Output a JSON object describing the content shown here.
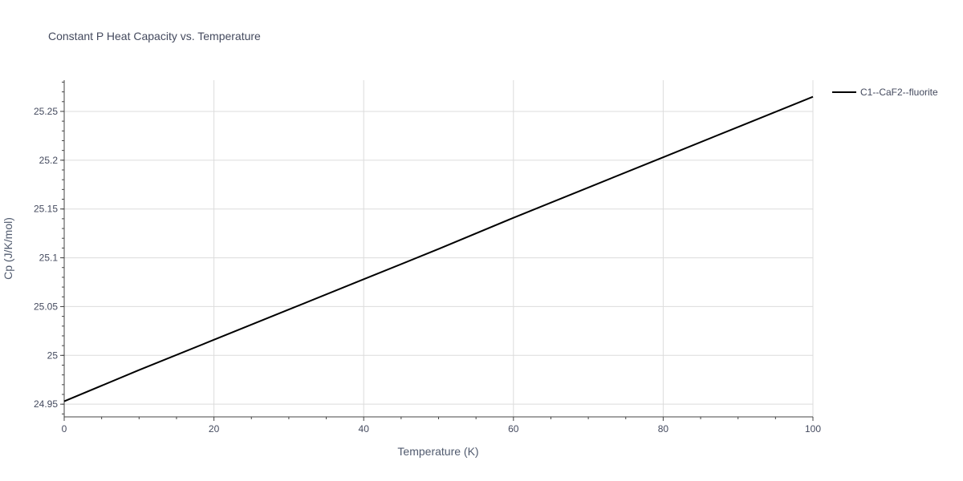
{
  "chart_data": {
    "type": "line",
    "title": "Constant P Heat Capacity vs. Temperature",
    "xlabel": "Temperature (K)",
    "ylabel": "Cp (J/K/mol)",
    "xlim": [
      0,
      100
    ],
    "ylim": [
      24.937,
      25.282
    ],
    "x_ticks": [
      0,
      20,
      40,
      60,
      80,
      100
    ],
    "x_tick_labels": [
      "0",
      "20",
      "40",
      "60",
      "80",
      "100"
    ],
    "y_ticks": [
      24.95,
      25.0,
      25.05,
      25.1,
      25.15,
      25.2,
      25.25
    ],
    "y_tick_labels": [
      "24.95",
      "25",
      "25.05",
      "25.1",
      "25.15",
      "25.2",
      "25.25"
    ],
    "grid": true,
    "legend_position": "top-right",
    "series": [
      {
        "name": "C1--CaF2--fluorite",
        "color": "#000000",
        "x": [
          0,
          10,
          20,
          30,
          40,
          50,
          60,
          70,
          80,
          90,
          100
        ],
        "y": [
          24.953,
          24.985,
          25.016,
          25.047,
          25.078,
          25.109,
          25.141,
          25.172,
          25.203,
          25.234,
          25.265
        ]
      }
    ]
  }
}
